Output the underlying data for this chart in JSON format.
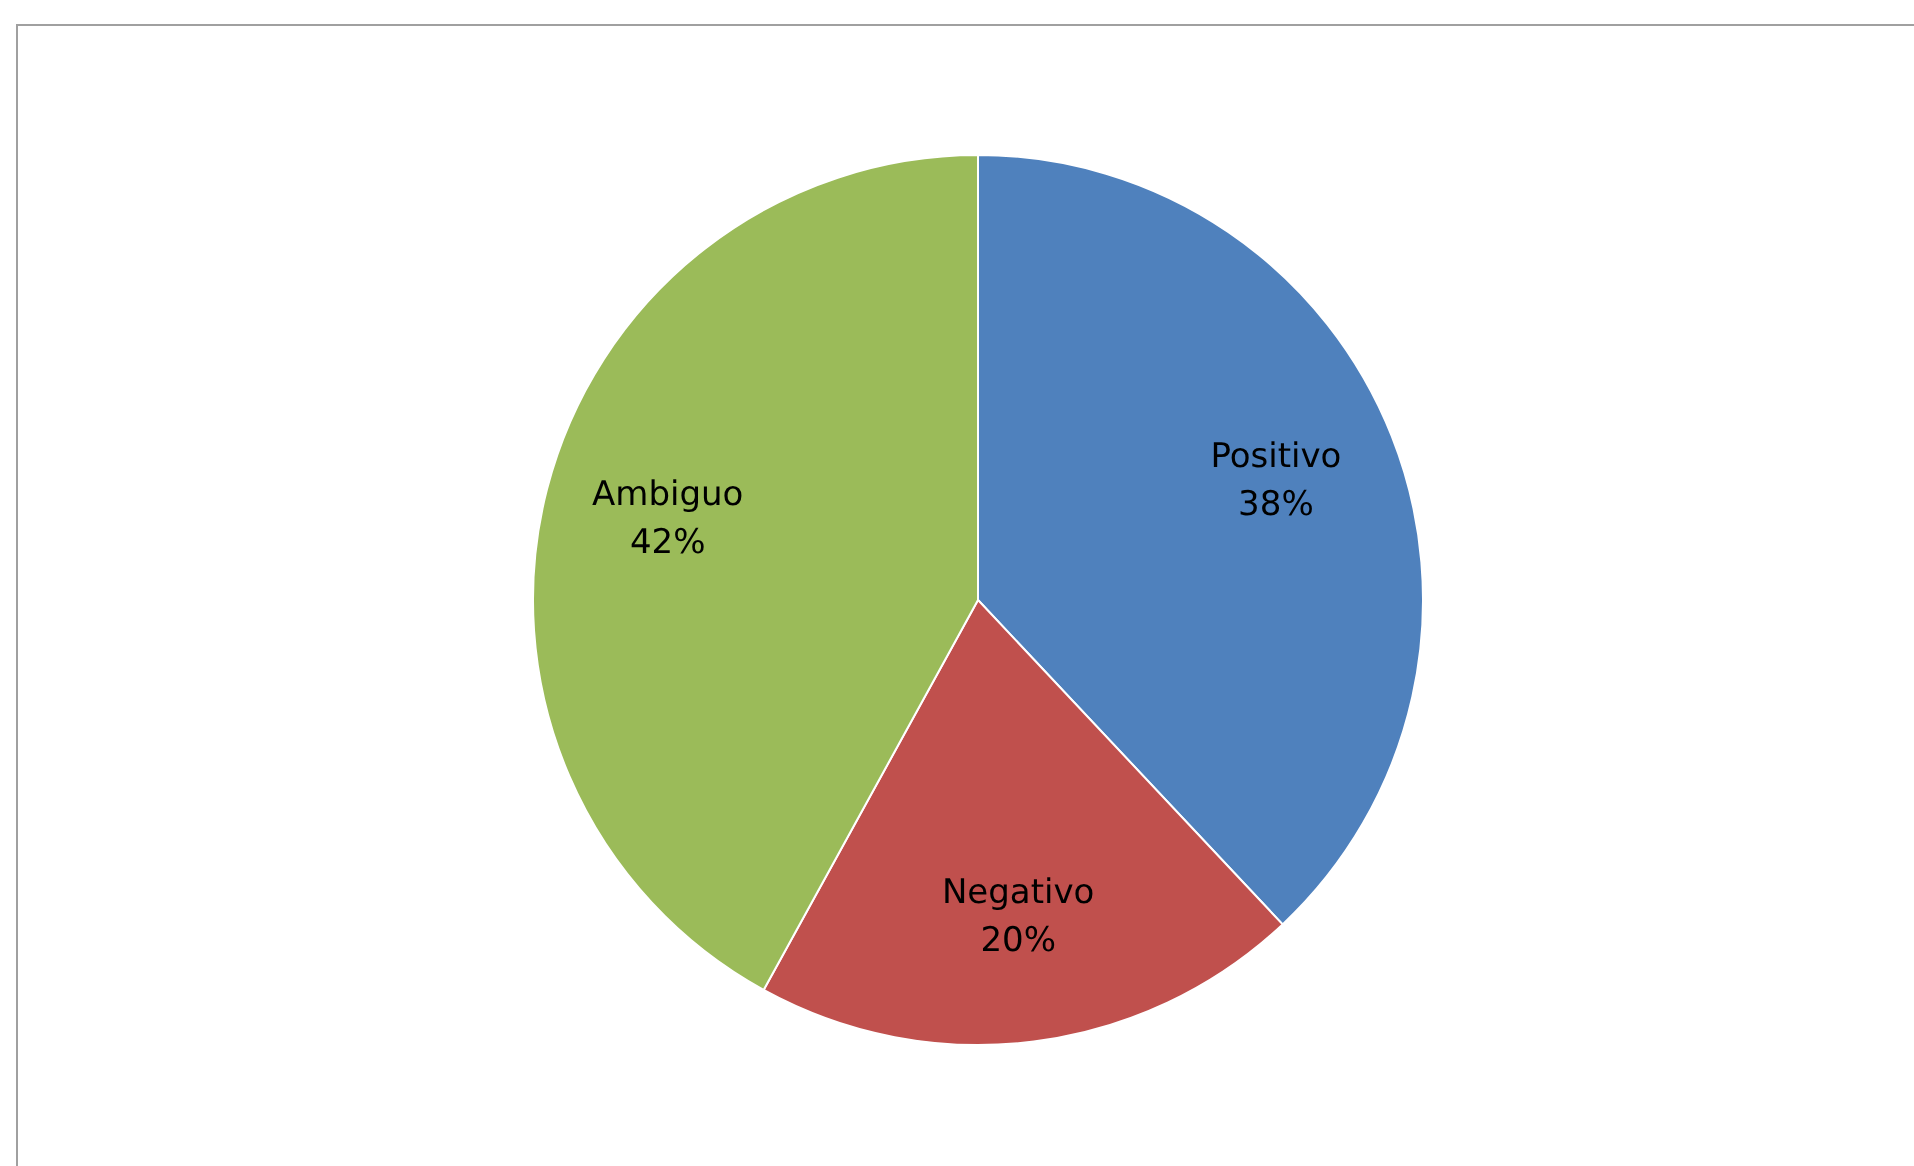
{
  "chart_data": {
    "type": "pie",
    "categories": [
      "Positivo",
      "Negativo",
      "Ambiguo"
    ],
    "values": [
      38,
      20,
      42
    ],
    "value_labels": [
      "38%",
      "20%",
      "42%"
    ],
    "colors": [
      "#4f81bd",
      "#c0504d",
      "#9bbb59"
    ]
  }
}
